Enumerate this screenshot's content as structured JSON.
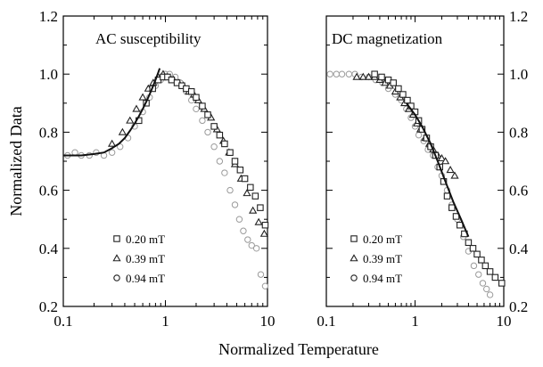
{
  "chart_data": [
    {
      "type": "scatter",
      "title": "AC susceptibility",
      "xlabel": "Normalized Temperature",
      "ylabel": "Normalized Data",
      "xscale": "log",
      "xlim": [
        0.1,
        10
      ],
      "ylim": [
        0.2,
        1.2
      ],
      "xticks": [
        "0.1",
        "1",
        "10"
      ],
      "yticks": [
        "0.2",
        "0.4",
        "0.6",
        "0.8",
        "1.0",
        "1.2"
      ],
      "ytick_side": "left",
      "legend_position": "bottom-left",
      "series": [
        {
          "name": "0.20 mT",
          "marker": "square",
          "x": [
            0.55,
            0.65,
            0.75,
            0.85,
            0.95,
            1.05,
            1.15,
            1.3,
            1.45,
            1.6,
            1.8,
            2.0,
            2.3,
            2.6,
            3.0,
            3.4,
            3.8,
            4.3,
            4.8,
            5.4,
            6.0,
            6.8,
            7.6,
            8.5,
            9.5
          ],
          "y": [
            0.84,
            0.9,
            0.95,
            0.98,
            0.99,
            0.99,
            0.98,
            0.97,
            0.96,
            0.95,
            0.94,
            0.92,
            0.89,
            0.86,
            0.82,
            0.79,
            0.76,
            0.73,
            0.7,
            0.67,
            0.64,
            0.61,
            0.58,
            0.54,
            0.48
          ]
        },
        {
          "name": "0.39 mT",
          "marker": "triangle",
          "x": [
            0.3,
            0.38,
            0.45,
            0.52,
            0.6,
            0.68,
            0.76,
            0.85,
            0.95,
            1.05,
            1.2,
            1.35,
            1.5,
            1.7,
            1.9,
            2.1,
            2.4,
            2.8,
            3.2,
            3.7,
            4.2,
            4.8,
            5.5,
            6.3,
            7.2,
            8.2,
            9.3
          ],
          "y": [
            0.76,
            0.8,
            0.84,
            0.88,
            0.92,
            0.95,
            0.97,
            0.99,
            1.0,
            0.99,
            0.98,
            0.97,
            0.96,
            0.94,
            0.93,
            0.91,
            0.88,
            0.85,
            0.81,
            0.77,
            0.73,
            0.69,
            0.64,
            0.59,
            0.53,
            0.49,
            0.45
          ]
        },
        {
          "name": "0.94 mT",
          "marker": "circle",
          "x": [
            0.11,
            0.13,
            0.15,
            0.18,
            0.21,
            0.25,
            0.3,
            0.36,
            0.43,
            0.5,
            0.6,
            0.7,
            0.8,
            0.9,
            1.0,
            1.1,
            1.25,
            1.4,
            1.6,
            1.8,
            2.0,
            2.3,
            2.6,
            3.0,
            3.4,
            3.8,
            4.3,
            4.8,
            5.3,
            5.8,
            6.4,
            7.0,
            7.8,
            8.6,
            9.5
          ],
          "y": [
            0.72,
            0.73,
            0.72,
            0.72,
            0.73,
            0.72,
            0.73,
            0.75,
            0.78,
            0.82,
            0.87,
            0.92,
            0.96,
            0.98,
            1.0,
            1.0,
            0.99,
            0.97,
            0.94,
            0.91,
            0.88,
            0.84,
            0.8,
            0.75,
            0.7,
            0.66,
            0.6,
            0.55,
            0.5,
            0.46,
            0.43,
            0.41,
            0.4,
            0.31,
            0.27
          ]
        }
      ],
      "fit_curve": {
        "x": [
          0.1,
          0.15,
          0.2,
          0.25,
          0.3,
          0.35,
          0.4,
          0.45,
          0.5,
          0.55,
          0.6,
          0.65,
          0.7,
          0.75,
          0.8,
          0.85,
          0.88
        ],
        "y": [
          0.72,
          0.72,
          0.725,
          0.73,
          0.745,
          0.76,
          0.78,
          0.805,
          0.83,
          0.855,
          0.88,
          0.905,
          0.93,
          0.955,
          0.98,
          1.005,
          1.02
        ]
      }
    },
    {
      "type": "scatter",
      "title": "DC magnetization",
      "xlabel": "Normalized Temperature",
      "ylabel": "",
      "xscale": "log",
      "xlim": [
        0.1,
        10
      ],
      "ylim": [
        0.2,
        1.2
      ],
      "xticks": [
        "0.1",
        "1",
        "10"
      ],
      "yticks": [
        "0.2",
        "0.4",
        "0.6",
        "0.8",
        "1.0",
        "1.2"
      ],
      "ytick_side": "right",
      "legend_position": "bottom-left",
      "series": [
        {
          "name": "0.20 mT",
          "marker": "square",
          "x": [
            0.35,
            0.42,
            0.5,
            0.57,
            0.65,
            0.73,
            0.82,
            0.9,
            1.0,
            1.1,
            1.2,
            1.35,
            1.5,
            1.7,
            1.9,
            2.1,
            2.3,
            2.6,
            2.9,
            3.2,
            3.6,
            4.0,
            4.5,
            5.0,
            5.6,
            6.2,
            7.0,
            8.0,
            9.5
          ],
          "y": [
            1.0,
            0.99,
            0.98,
            0.97,
            0.95,
            0.93,
            0.91,
            0.89,
            0.87,
            0.84,
            0.81,
            0.78,
            0.75,
            0.72,
            0.68,
            0.63,
            0.58,
            0.54,
            0.51,
            0.48,
            0.45,
            0.42,
            0.4,
            0.38,
            0.36,
            0.34,
            0.32,
            0.3,
            0.28
          ]
        },
        {
          "name": "0.39 mT",
          "marker": "triangle",
          "x": [
            0.22,
            0.26,
            0.3,
            0.35,
            0.4,
            0.46,
            0.52,
            0.6,
            0.68,
            0.76,
            0.85,
            0.95,
            1.05,
            1.15,
            1.3,
            1.45,
            1.6,
            1.8,
            2.0,
            2.2,
            2.5,
            2.8
          ],
          "y": [
            0.99,
            0.99,
            0.99,
            0.99,
            0.98,
            0.97,
            0.96,
            0.94,
            0.92,
            0.9,
            0.88,
            0.86,
            0.83,
            0.81,
            0.78,
            0.76,
            0.74,
            0.72,
            0.71,
            0.7,
            0.67,
            0.65
          ]
        },
        {
          "name": "0.94 mT",
          "marker": "circle",
          "x": [
            0.11,
            0.13,
            0.15,
            0.18,
            0.21,
            0.25,
            0.3,
            0.36,
            0.43,
            0.5,
            0.6,
            0.7,
            0.8,
            0.9,
            1.0,
            1.1,
            1.25,
            1.4,
            1.6,
            1.8,
            2.0,
            2.3,
            2.6,
            3.0,
            3.5,
            4.0,
            4.6,
            5.2,
            5.8,
            6.4,
            7.0
          ],
          "y": [
            1.0,
            1.0,
            1.0,
            1.0,
            1.0,
            0.99,
            0.99,
            0.98,
            0.97,
            0.95,
            0.93,
            0.91,
            0.88,
            0.85,
            0.82,
            0.79,
            0.77,
            0.74,
            0.72,
            0.68,
            0.65,
            0.6,
            0.55,
            0.5,
            0.44,
            0.39,
            0.34,
            0.31,
            0.28,
            0.26,
            0.24
          ]
        }
      ],
      "fit_curve": {
        "x": [
          0.8,
          1.0,
          1.2,
          1.5,
          1.8,
          2.2,
          2.7,
          3.3,
          4.0
        ],
        "y": [
          0.9,
          0.86,
          0.82,
          0.76,
          0.7,
          0.63,
          0.56,
          0.5,
          0.44
        ]
      }
    }
  ]
}
